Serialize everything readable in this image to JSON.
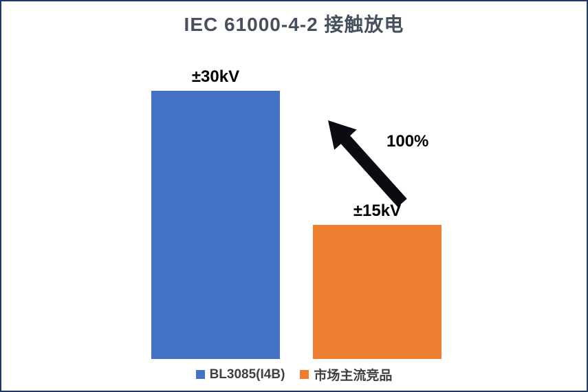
{
  "chart_data": {
    "type": "bar",
    "title": "IEC 61000-4-2 接触放电",
    "unit": "kV",
    "ylim": [
      0,
      30
    ],
    "gridlines": false,
    "axes_visible": false,
    "legend_position": "bottom",
    "series": [
      {
        "name": "BL3085(I4B)",
        "value": 30,
        "data_label": "±30kV",
        "color": "#4472C4"
      },
      {
        "name": "市场主流竞品",
        "value": 15,
        "data_label": "±15kV",
        "color": "#ED7D31"
      }
    ],
    "annotation": {
      "text": "100%",
      "shape": "block-arrow",
      "direction": "up-left",
      "color": "#0b0b12"
    }
  },
  "colors": {
    "frame_border": "#203864",
    "background": "#ffffff",
    "title_text": "#47505e",
    "data_label_text": "#000000",
    "legend_text": "#404040"
  }
}
